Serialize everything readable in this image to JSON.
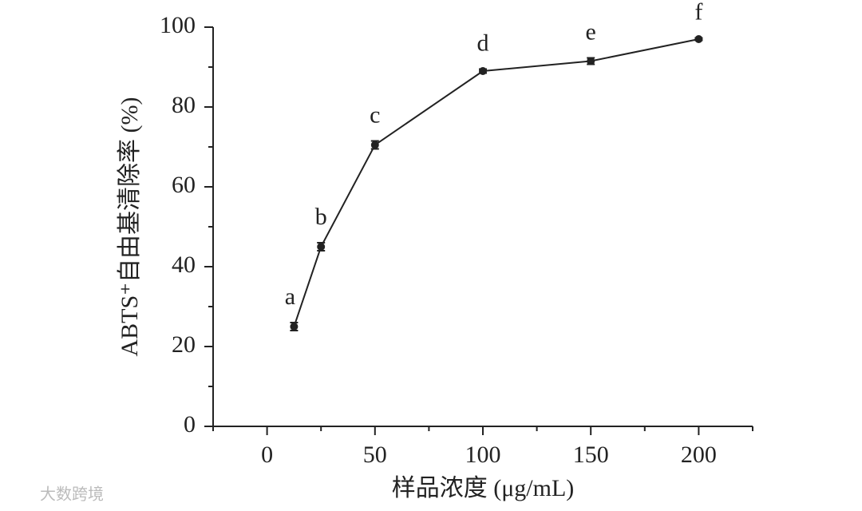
{
  "chart_data": {
    "type": "line",
    "xlabel": "样品浓度 (μg/mL)",
    "ylabel": "ABTS⁺自由基清除率 (%)",
    "x": [
      12.5,
      25,
      50,
      100,
      150,
      200
    ],
    "series": [
      {
        "color": "#222222",
        "values": [
          25,
          45,
          70.5,
          89,
          91.5,
          97
        ],
        "errors": [
          1,
          1,
          1,
          0.5,
          0.8,
          0.3
        ]
      }
    ],
    "point_labels": [
      "a",
      "b",
      "c",
      "d",
      "e",
      "f"
    ],
    "xlim": [
      -25,
      225
    ],
    "xticks": [
      0,
      50,
      100,
      150,
      200
    ],
    "xminorticks": [
      -25,
      25,
      75,
      125,
      175,
      225
    ],
    "ylim": [
      0,
      100
    ],
    "yticks": [
      0,
      20,
      40,
      60,
      80,
      100
    ],
    "yminorticks": [
      10,
      30,
      50,
      70,
      90
    ],
    "watermark": "大数跨境"
  }
}
